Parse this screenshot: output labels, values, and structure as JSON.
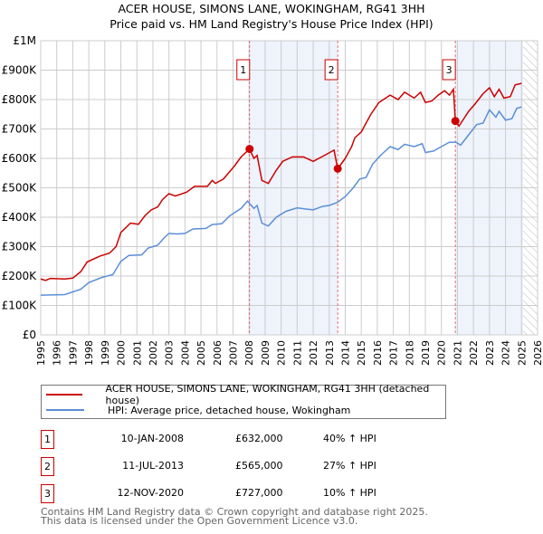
{
  "chart_data": {
    "type": "line",
    "title": "ACER HOUSE, SIMONS LANE, WOKINGHAM, RG41 3HH",
    "subtitle": "Price paid vs. HM Land Registry's House Price Index (HPI)",
    "xlim": [
      1995,
      2026
    ],
    "ylim": [
      0,
      1000000
    ],
    "x_ticks": [
      "1995",
      "1996",
      "1997",
      "1998",
      "1999",
      "2000",
      "2001",
      "2002",
      "2003",
      "2004",
      "2005",
      "2006",
      "2007",
      "2008",
      "2009",
      "2010",
      "2011",
      "2012",
      "2013",
      "2014",
      "2015",
      "2016",
      "2017",
      "2018",
      "2019",
      "2020",
      "2021",
      "2022",
      "2023",
      "2024",
      "2025",
      "2026"
    ],
    "y_ticks": [
      {
        "v": 0,
        "label": "£0"
      },
      {
        "v": 100000,
        "label": "£100K"
      },
      {
        "v": 200000,
        "label": "£200K"
      },
      {
        "v": 300000,
        "label": "£300K"
      },
      {
        "v": 400000,
        "label": "£400K"
      },
      {
        "v": 500000,
        "label": "£500K"
      },
      {
        "v": 600000,
        "label": "£600K"
      },
      {
        "v": 700000,
        "label": "£700K"
      },
      {
        "v": 800000,
        "label": "£800K"
      },
      {
        "v": 900000,
        "label": "£900K"
      },
      {
        "v": 1000000,
        "label": "£1M"
      }
    ],
    "grid": true,
    "shaded_ranges": [
      [
        2008.03,
        2013.53
      ],
      [
        2020.87,
        2025.1
      ]
    ],
    "forecast_hatch_from": 2025.1,
    "series": [
      {
        "name": "ACER HOUSE, SIMONS LANE, WOKINGHAM, RG41 3HH (detached house)",
        "color": "#cc0000",
        "points": [
          [
            1995,
            190
          ],
          [
            1995.3,
            185
          ],
          [
            1995.6,
            192
          ],
          [
            1996.5,
            190
          ],
          [
            1997,
            193
          ],
          [
            1997.5,
            215
          ],
          [
            1997.9,
            248
          ],
          [
            1998.7,
            268
          ],
          [
            1999.3,
            278
          ],
          [
            1999.7,
            300
          ],
          [
            2000,
            348
          ],
          [
            2000.6,
            380
          ],
          [
            2001.1,
            376
          ],
          [
            2001.5,
            405
          ],
          [
            2001.9,
            425
          ],
          [
            2002.3,
            435
          ],
          [
            2002.6,
            460
          ],
          [
            2003,
            480
          ],
          [
            2003.4,
            472
          ],
          [
            2004.1,
            485
          ],
          [
            2004.6,
            505
          ],
          [
            2005.4,
            505
          ],
          [
            2005.7,
            525
          ],
          [
            2005.9,
            515
          ],
          [
            2006.4,
            530
          ],
          [
            2007.1,
            575
          ],
          [
            2007.5,
            605
          ],
          [
            2008.03,
            632
          ],
          [
            2008.3,
            600
          ],
          [
            2008.5,
            610
          ],
          [
            2008.8,
            525
          ],
          [
            2009.2,
            515
          ],
          [
            2009.7,
            560
          ],
          [
            2010.1,
            590
          ],
          [
            2010.7,
            605
          ],
          [
            2011.4,
            605
          ],
          [
            2012,
            590
          ],
          [
            2012.7,
            610
          ],
          [
            2013.3,
            628
          ],
          [
            2013.53,
            565
          ],
          [
            2014,
            600
          ],
          [
            2014.4,
            640
          ],
          [
            2014.6,
            670
          ],
          [
            2015,
            690
          ],
          [
            2015.6,
            750
          ],
          [
            2016.1,
            790
          ],
          [
            2016.8,
            815
          ],
          [
            2017.3,
            800
          ],
          [
            2017.7,
            825
          ],
          [
            2018.3,
            805
          ],
          [
            2018.7,
            825
          ],
          [
            2019,
            790
          ],
          [
            2019.4,
            795
          ],
          [
            2019.8,
            815
          ],
          [
            2020.2,
            830
          ],
          [
            2020.5,
            815
          ],
          [
            2020.75,
            835
          ],
          [
            2020.87,
            727
          ],
          [
            2021.1,
            710
          ],
          [
            2021.7,
            760
          ],
          [
            2022.1,
            785
          ],
          [
            2022.6,
            820
          ],
          [
            2023,
            840
          ],
          [
            2023.3,
            810
          ],
          [
            2023.6,
            835
          ],
          [
            2023.9,
            805
          ],
          [
            2024.3,
            810
          ],
          [
            2024.6,
            850
          ],
          [
            2025,
            855
          ]
        ]
      },
      {
        "name": "HPI: Average price, detached house, Wokingham",
        "color": "#5b8fd6",
        "points": [
          [
            1995,
            135
          ],
          [
            1996.5,
            137
          ],
          [
            1997.5,
            155
          ],
          [
            1998,
            178
          ],
          [
            1998.8,
            195
          ],
          [
            1999.5,
            205
          ],
          [
            2000,
            250
          ],
          [
            2000.5,
            270
          ],
          [
            2001.3,
            272
          ],
          [
            2001.7,
            295
          ],
          [
            2002.3,
            305
          ],
          [
            2002.7,
            330
          ],
          [
            2003,
            345
          ],
          [
            2003.5,
            343
          ],
          [
            2004,
            345
          ],
          [
            2004.5,
            360
          ],
          [
            2005.3,
            362
          ],
          [
            2005.7,
            375
          ],
          [
            2006.3,
            378
          ],
          [
            2006.8,
            405
          ],
          [
            2007.5,
            430
          ],
          [
            2007.9,
            455
          ],
          [
            2008.3,
            430
          ],
          [
            2008.5,
            440
          ],
          [
            2008.8,
            380
          ],
          [
            2009.2,
            370
          ],
          [
            2009.7,
            400
          ],
          [
            2010.3,
            420
          ],
          [
            2011,
            432
          ],
          [
            2011.5,
            428
          ],
          [
            2012,
            425
          ],
          [
            2012.6,
            437
          ],
          [
            2013,
            440
          ],
          [
            2013.5,
            450
          ],
          [
            2014,
            470
          ],
          [
            2014.5,
            500
          ],
          [
            2014.9,
            530
          ],
          [
            2015.3,
            535
          ],
          [
            2015.7,
            580
          ],
          [
            2016.2,
            610
          ],
          [
            2016.8,
            640
          ],
          [
            2017.3,
            630
          ],
          [
            2017.7,
            648
          ],
          [
            2018.3,
            640
          ],
          [
            2018.8,
            650
          ],
          [
            2019,
            620
          ],
          [
            2019.5,
            625
          ],
          [
            2020,
            640
          ],
          [
            2020.5,
            655
          ],
          [
            2020.9,
            655
          ],
          [
            2021.2,
            645
          ],
          [
            2021.7,
            680
          ],
          [
            2022.2,
            715
          ],
          [
            2022.6,
            720
          ],
          [
            2023,
            765
          ],
          [
            2023.4,
            740
          ],
          [
            2023.6,
            760
          ],
          [
            2024,
            730
          ],
          [
            2024.4,
            735
          ],
          [
            2024.7,
            770
          ],
          [
            2025,
            775
          ]
        ]
      }
    ],
    "sales": [
      {
        "label": "1",
        "x": 2008.03,
        "value": 632
      },
      {
        "label": "2",
        "x": 2013.53,
        "value": 565
      },
      {
        "label": "3",
        "x": 2020.87,
        "value": 727
      }
    ],
    "value_units": "£K"
  },
  "legend": {
    "red": "ACER HOUSE, SIMONS LANE, WOKINGHAM, RG41 3HH (detached house)",
    "blue": "HPI: Average price, detached house, Wokingham"
  },
  "table": [
    {
      "num": "1",
      "date": "10-JAN-2008",
      "price": "£632,000",
      "hpi": "40% ↑ HPI"
    },
    {
      "num": "2",
      "date": "11-JUL-2013",
      "price": "£565,000",
      "hpi": "27% ↑ HPI"
    },
    {
      "num": "3",
      "date": "12-NOV-2020",
      "price": "£727,000",
      "hpi": "10% ↑ HPI"
    }
  ],
  "footer": [
    "Contains HM Land Registry data © Crown copyright and database right 2025.",
    "This data is licensed under the Open Government Licence v3.0."
  ]
}
